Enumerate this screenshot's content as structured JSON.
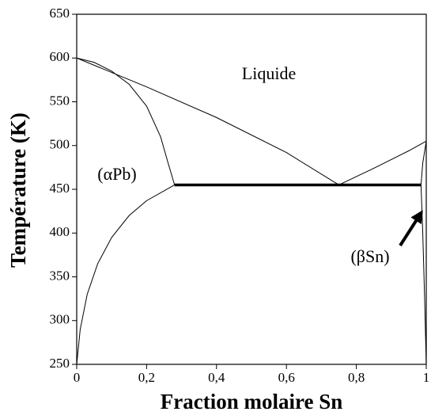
{
  "chart_data": {
    "type": "line",
    "xlabel": "Fraction molaire Sn",
    "ylabel": "Température (K)",
    "annotations": [
      "Liquide",
      "(αPb)",
      "(βSn)"
    ],
    "xlim": [
      0,
      1
    ],
    "ylim": [
      250,
      650
    ],
    "xticks": [
      0,
      {
        "value": 0.2,
        "label": "0,2"
      },
      {
        "value": 0.4,
        "label": "0,4"
      },
      {
        "value": 0.6,
        "label": "0,6"
      },
      {
        "value": 0.8,
        "label": "0,8"
      },
      1
    ],
    "yticks": [
      250,
      300,
      350,
      400,
      450,
      500,
      550,
      600,
      650
    ],
    "series": [
      {
        "color": "#000000",
        "linewidth": 1,
        "x": [
          0,
          0.2,
          0.4,
          0.6,
          0.75
        ],
        "values": [
          600,
          567,
          532,
          492,
          455
        ]
      },
      {
        "color": "#000000",
        "linewidth": 1,
        "x": [
          0.75,
          0.85,
          0.95,
          1
        ],
        "values": [
          455,
          474,
          494,
          505
        ]
      },
      {
        "color": "#000000",
        "linewidth": 1,
        "x": [
          0,
          0.05,
          0.1,
          0.15,
          0.2,
          0.24,
          0.26,
          0.28
        ],
        "values": [
          600,
          595,
          585,
          570,
          545,
          510,
          482,
          455
        ]
      },
      {
        "color": "#000000",
        "linewidth": 1,
        "x": [
          0.28,
          0.2,
          0.15,
          0.1,
          0.06,
          0.03,
          0.01,
          0
        ],
        "values": [
          455,
          437,
          420,
          395,
          365,
          330,
          290,
          250
        ]
      },
      {
        "color": "#000000",
        "linewidth": 1,
        "x": [
          1,
          0.99,
          0.985
        ],
        "values": [
          505,
          480,
          455
        ]
      },
      {
        "color": "#000000",
        "linewidth": 1,
        "x": [
          0.985,
          0.99,
          0.995,
          1
        ],
        "values": [
          455,
          400,
          330,
          250
        ]
      },
      {
        "color": "#000000",
        "linewidth": 3.5,
        "x": [
          0.28,
          0.985
        ],
        "values": [
          455,
          455
        ]
      }
    ]
  }
}
